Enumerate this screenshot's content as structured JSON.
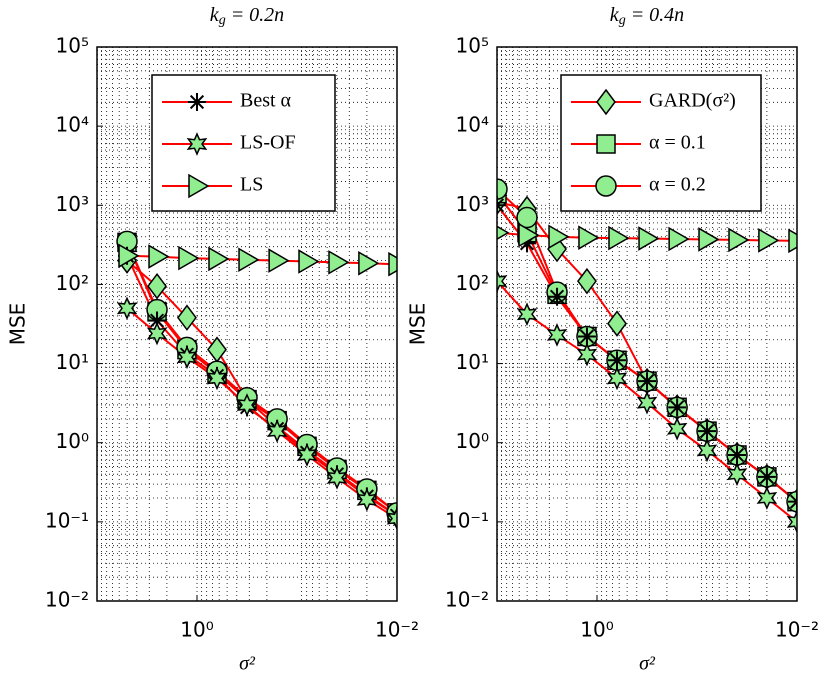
{
  "chart_data": [
    {
      "type": "line",
      "title": {
        "base": "k",
        "sub": "g",
        "rest": " = 0.2n"
      },
      "xlabel": "σ²",
      "ylabel": "MSE",
      "xscale": "log",
      "yscale": "log",
      "x_reversed": true,
      "grid": true,
      "minor_grid": true,
      "legend": "north-east",
      "xlim": [
        10,
        0.01
      ],
      "ylim": [
        0.01,
        100000
      ],
      "xticks": [
        {
          "value": 1,
          "label": "10⁰"
        },
        {
          "value": 0.01,
          "label": "10⁻²"
        }
      ],
      "yticks": [
        {
          "value": 0.01,
          "label": "10⁻²"
        },
        {
          "value": 0.1,
          "label": "10⁻¹"
        },
        {
          "value": 1,
          "label": "10⁰"
        },
        {
          "value": 10,
          "label": "10¹"
        },
        {
          "value": 100,
          "label": "10²"
        },
        {
          "value": 1000,
          "label": "10³"
        },
        {
          "value": 10000,
          "label": "10⁴"
        },
        {
          "value": 100000,
          "label": "10⁵"
        }
      ],
      "x": [
        5.01,
        2.51,
        1.26,
        0.631,
        0.316,
        0.158,
        0.0794,
        0.0398,
        0.02,
        0.01
      ],
      "series": [
        {
          "name": "Best α",
          "color": "#ff0000",
          "marker": "asterisk",
          "marker_color": "#90ee90",
          "values": [
            230,
            35,
            13,
            7,
            2.8,
            1.5,
            0.75,
            0.4,
            0.21,
            0.12
          ]
        },
        {
          "name": "LS-OF",
          "color": "#ff0000",
          "marker": "hexagram",
          "marker_color": "#90ee90",
          "values": [
            50,
            24,
            12,
            6.5,
            3,
            1.4,
            0.7,
            0.36,
            0.19,
            0.11
          ]
        },
        {
          "name": "LS",
          "color": "#ff0000",
          "marker": "triangle-right",
          "marker_color": "#90ee90",
          "values": [
            230,
            225,
            215,
            210,
            205,
            200,
            195,
            190,
            185,
            180
          ]
        },
        {
          "color": "#ff0000",
          "marker": "diamond",
          "marker_color": "#90ee90",
          "values": [
            200,
            95,
            38,
            15,
            3.5,
            1.6,
            0.8,
            0.42,
            0.22,
            0.12
          ]
        },
        {
          "color": "#ff0000",
          "marker": "square",
          "marker_color": "#90ee90",
          "values": [
            340,
            45,
            15,
            7.5,
            3.5,
            1.9,
            0.9,
            0.46,
            0.25,
            0.13
          ]
        },
        {
          "color": "#ff0000",
          "marker": "circle",
          "marker_color": "#90ee90",
          "values": [
            350,
            48,
            16,
            8,
            3.7,
            2,
            0.95,
            0.48,
            0.26,
            0.13
          ]
        }
      ]
    },
    {
      "type": "line",
      "title": {
        "base": "k",
        "sub": "g",
        "rest": " = 0.4n"
      },
      "xlabel": "σ²",
      "ylabel": "MSE",
      "xscale": "log",
      "yscale": "log",
      "x_reversed": true,
      "grid": true,
      "minor_grid": true,
      "legend": "north-east",
      "xlim": [
        10,
        0.01
      ],
      "ylim": [
        0.01,
        100000
      ],
      "xticks": [
        {
          "value": 1,
          "label": "10⁰"
        },
        {
          "value": 0.01,
          "label": "10⁻²"
        }
      ],
      "yticks": [
        {
          "value": 0.01,
          "label": "10⁻²"
        },
        {
          "value": 0.1,
          "label": "10⁻¹"
        },
        {
          "value": 1,
          "label": "10⁰"
        },
        {
          "value": 10,
          "label": "10¹"
        },
        {
          "value": 100,
          "label": "10²"
        },
        {
          "value": 1000,
          "label": "10³"
        },
        {
          "value": 10000,
          "label": "10⁴"
        },
        {
          "value": 100000,
          "label": "10⁵"
        }
      ],
      "x": [
        10,
        5.01,
        2.51,
        1.26,
        0.631,
        0.316,
        0.158,
        0.0794,
        0.0398,
        0.02,
        0.01
      ],
      "series": [
        {
          "color": "#ff0000",
          "marker": "asterisk",
          "marker_color": "#90ee90",
          "values": [
            1000,
            330,
            70,
            22,
            11,
            6,
            2.8,
            1.4,
            0.7,
            0.37,
            0.18
          ]
        },
        {
          "color": "#ff0000",
          "marker": "hexagram",
          "marker_color": "#90ee90",
          "values": [
            110,
            42,
            23,
            13,
            6.5,
            3.2,
            1.5,
            0.8,
            0.4,
            0.2,
            0.1
          ]
        },
        {
          "color": "#ff0000",
          "marker": "triangle-right",
          "marker_color": "#90ee90",
          "values": [
            450,
            420,
            400,
            390,
            385,
            380,
            375,
            370,
            365,
            360,
            355
          ]
        },
        {
          "name": "GARD(σ²)",
          "color": "#ff0000",
          "marker": "diamond",
          "marker_color": "#90ee90",
          "values": [
            1100,
            900,
            280,
            110,
            32,
            6,
            2.8,
            1.4,
            0.7,
            0.37,
            0.18
          ]
        },
        {
          "name": "α = 0.1",
          "color": "#ff0000",
          "marker": "square",
          "marker_color": "#90ee90",
          "values": [
            1400,
            450,
            75,
            22,
            11,
            6,
            2.8,
            1.4,
            0.7,
            0.37,
            0.18
          ]
        },
        {
          "name": "α = 0.2",
          "color": "#ff0000",
          "marker": "circle",
          "marker_color": "#90ee90",
          "values": [
            1600,
            700,
            80,
            22,
            11,
            6,
            2.8,
            1.4,
            0.7,
            0.37,
            0.18
          ]
        }
      ]
    }
  ]
}
